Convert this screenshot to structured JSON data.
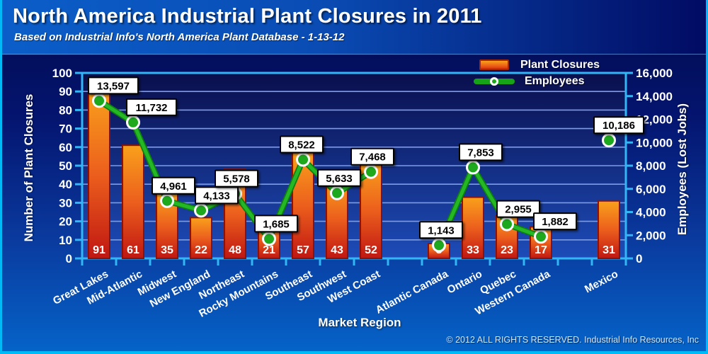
{
  "header": {
    "title": "North America Industrial Plant Closures in 2011",
    "subtitle": "Based on Industrial Info's North America Plant Database - 1-13-12"
  },
  "footer": {
    "copyright": "© 2012 ALL RIGHTS RESERVED. Industrial Info Resources, Inc"
  },
  "chart_data": {
    "type": "bar+line",
    "xlabel": "Market Region",
    "ylabel_left": "Number of Plant Closures",
    "ylabel_right": "Employees (Lost Jobs)",
    "ylim_left": [
      0,
      100
    ],
    "ystep_left": 10,
    "ylim_right": [
      0,
      16000
    ],
    "ystep_right": 2000,
    "grid": "horizontal",
    "legend_position": "top-right",
    "legend": [
      {
        "label": "Plant Closures",
        "type": "bar"
      },
      {
        "label": "Employees",
        "type": "line"
      }
    ],
    "categories": [
      "Great Lakes",
      "Mid-Atlantic",
      "Midwest",
      "New England",
      "Northeast",
      "Rocky Mountains",
      "Southeast",
      "Southwest",
      "West Coast",
      "Atlantic Canada",
      "Ontario",
      "Quebec",
      "Western Canada",
      "Mexico"
    ],
    "n_slots": 16,
    "slots": [
      0,
      1,
      2,
      3,
      4,
      5,
      6,
      7,
      8,
      10,
      11,
      12,
      13,
      15
    ],
    "line_segments": [
      [
        0,
        8
      ],
      [
        9,
        12
      ],
      [
        13,
        13
      ]
    ],
    "series": [
      {
        "name": "Plant Closures",
        "axis": "left",
        "values": [
          91,
          61,
          35,
          22,
          48,
          21,
          57,
          43,
          52,
          8,
          33,
          23,
          17,
          31
        ]
      },
      {
        "name": "Employees",
        "axis": "right",
        "values": [
          13597,
          11732,
          4961,
          4133,
          5578,
          1685,
          8522,
          5633,
          7468,
          1143,
          7853,
          2955,
          1882,
          10186
        ]
      }
    ],
    "label_dx": [
      20,
      26,
      9,
      22,
      2,
      10,
      -2,
      3,
      2,
      3,
      11,
      16,
      20,
      14
    ]
  },
  "colors": {
    "bar_top": "#f9a11b",
    "bar_mid": "#ec5f1d",
    "bar_bottom": "#c01712",
    "bar_border": "#8c120b",
    "line": "#25b825",
    "line_edge": "#0f7d11",
    "marker_fill": "#1da81d",
    "marker_ring": "#ffffff",
    "axis": "#33b6f6",
    "gridline": "#7b9ce8",
    "plot_top": "#0a0f4d",
    "plot_bottom": "#1d4cb8",
    "callout_bg": "#ffffff",
    "callout_border": "#000000",
    "text": "#ffffff"
  }
}
